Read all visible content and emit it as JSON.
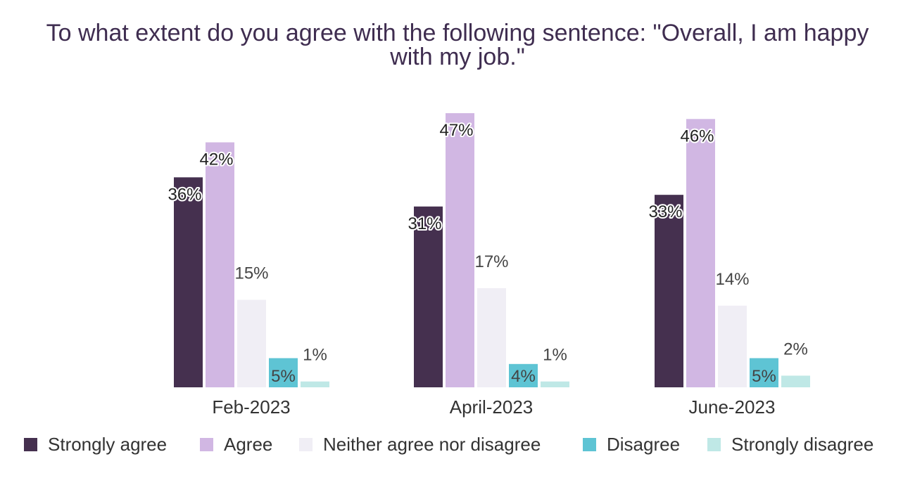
{
  "chart_data": {
    "type": "bar",
    "title_lines": [
      "To what extent do you agree with the following sentence: \"Overall, I am happy",
      "with my job.\""
    ],
    "categories": [
      "Feb-2023",
      "April-2023",
      "June-2023"
    ],
    "series": [
      {
        "name": "Strongly agree",
        "color": "#45304f",
        "values": [
          36,
          31,
          33
        ],
        "labels": [
          "36%",
          "31%",
          "33%"
        ]
      },
      {
        "name": "Agree",
        "color": "#d1b7e3",
        "values": [
          42,
          47,
          46
        ],
        "labels": [
          "42%",
          "47%",
          "46%"
        ]
      },
      {
        "name": "Neither agree nor disagree",
        "color": "#f0eef5",
        "values": [
          15,
          17,
          14
        ],
        "labels": [
          "15%",
          "17%",
          "14%"
        ]
      },
      {
        "name": "Disagree",
        "color": "#5ec4d4",
        "values": [
          5,
          4,
          5
        ],
        "labels": [
          "5%",
          "4%",
          "5%"
        ]
      },
      {
        "name": "Strongly disagree",
        "color": "#bfe8e6",
        "values": [
          1,
          1,
          2
        ],
        "labels": [
          "1%",
          "1%",
          "2%"
        ]
      }
    ],
    "ylim": [
      0,
      47
    ],
    "grid": false,
    "legend_position": "bottom"
  }
}
